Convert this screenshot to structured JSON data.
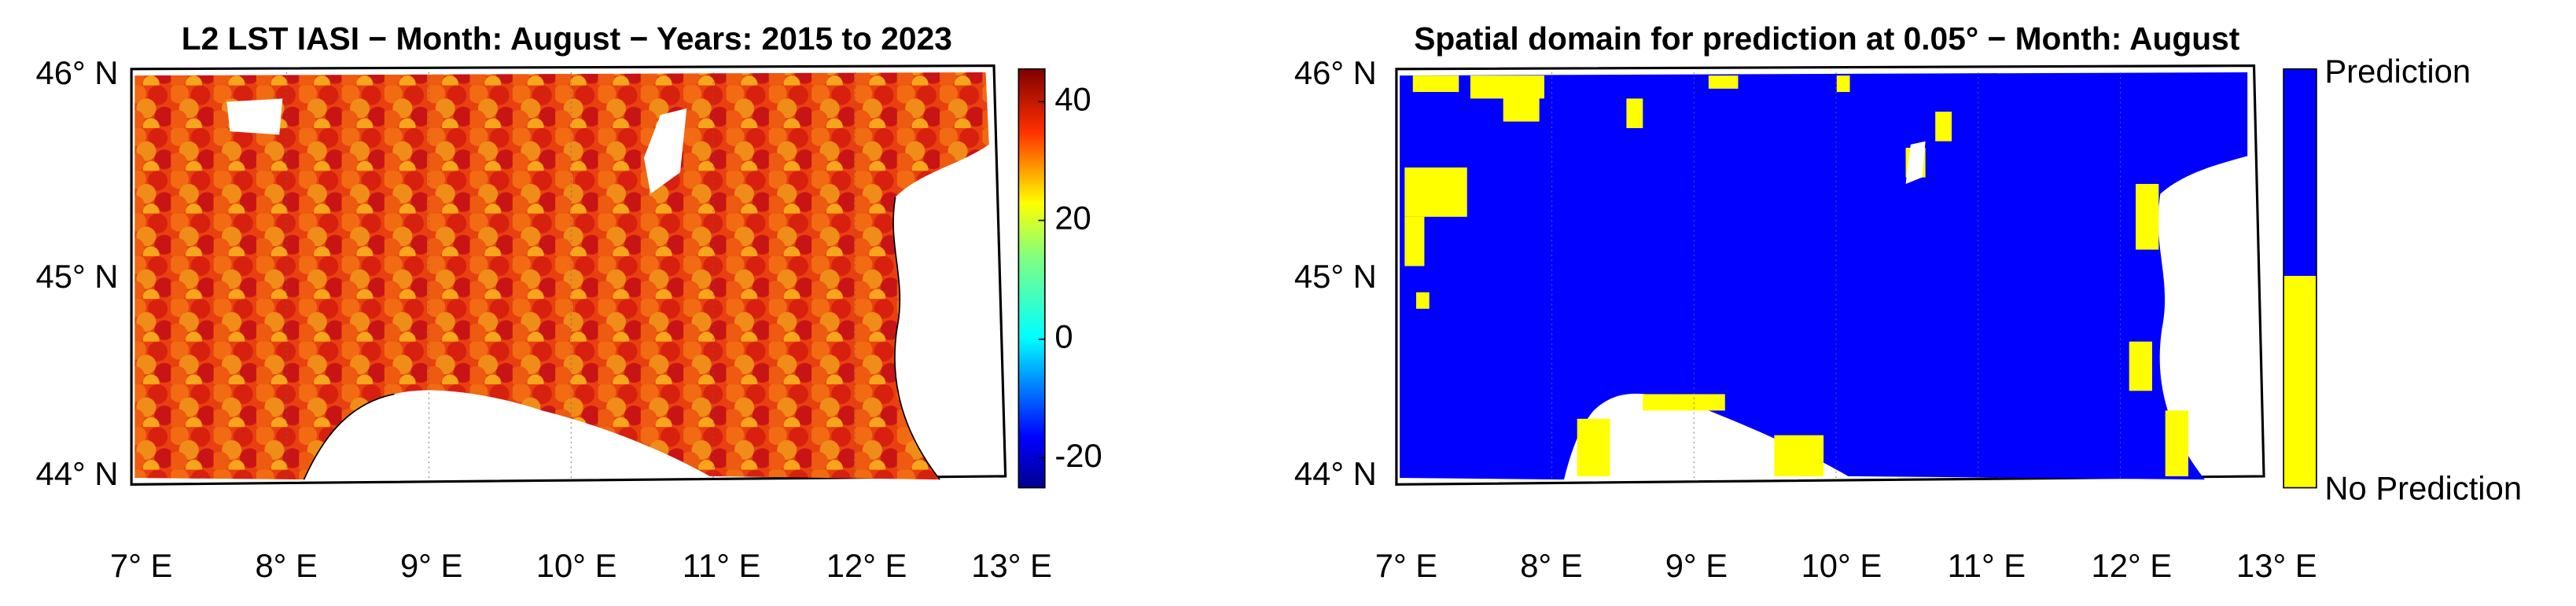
{
  "panels": [
    {
      "title": "L2 LST IASI − Month: August − Years: 2015 to 2023",
      "lat_labels": [
        "46° N",
        "45° N",
        "44° N"
      ],
      "lon_labels": [
        "7° E",
        "8° E",
        "9° E",
        "10° E",
        "11° E",
        "12° E",
        "13° E"
      ],
      "colorbar": {
        "lim": [
          -25,
          45.5
        ],
        "ticks": [
          -20,
          0,
          20,
          40
        ]
      }
    },
    {
      "title": "Spatial domain for prediction at 0.05° − Month: August",
      "lat_labels": [
        "46° N",
        "45° N",
        "44° N"
      ],
      "lon_labels": [
        "7° E",
        "8° E",
        "9° E",
        "10° E",
        "11° E",
        "12° E",
        "13° E"
      ],
      "legend": [
        "Prediction",
        "No Prediction"
      ]
    }
  ]
}
